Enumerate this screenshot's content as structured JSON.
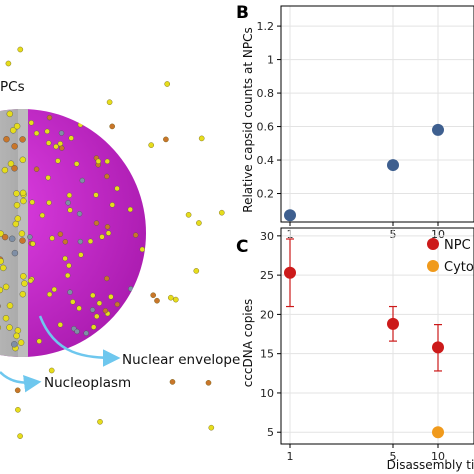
{
  "panel_a": {
    "labels": {
      "npcs": "PCs",
      "nuclear_envelope": "Nuclear envelope",
      "nucleoplasm": "Nucleoplasm"
    },
    "colors": {
      "envelope": "#cc1fd1",
      "cutaway": "#c9c9c9",
      "capsid": "#e6dd1c",
      "capsid_orange": "#c9762a",
      "npc": "#7f8fa6",
      "arrow": "#6ec7ee"
    }
  },
  "chart_data": [
    {
      "panel": "B",
      "type": "scatter",
      "title": "",
      "xlabel": "",
      "ylabel": "Relative capsid counts at NPCs",
      "xticks": [
        1,
        5,
        10
      ],
      "yticks": [
        0.2,
        0.4,
        0.6,
        0.8,
        1.0,
        1.2
      ],
      "ylim": [
        0.03,
        1.32
      ],
      "grid": true,
      "series": [
        {
          "color": "#3e5f8f",
          "points": [
            {
              "x": 1,
              "y": 0.07
            },
            {
              "x": 5,
              "y": 0.37
            },
            {
              "x": 10,
              "y": 0.58
            }
          ]
        }
      ]
    },
    {
      "panel": "C",
      "type": "scatter",
      "title": "",
      "xlabel": "Disassembly time",
      "ylabel": "cccDNA copies",
      "xticks": [
        1,
        5,
        10
      ],
      "yticks": [
        5,
        10,
        15,
        20,
        25,
        30
      ],
      "ylim": [
        3.5,
        31
      ],
      "grid": true,
      "legend_position": "top-right",
      "series": [
        {
          "name": "NPC",
          "color": "#cc1a1a",
          "points": [
            {
              "x": 1,
              "y": 25.3,
              "err_low": 21.0,
              "err_high": 29.6
            },
            {
              "x": 5,
              "y": 18.8,
              "err_low": 16.6,
              "err_high": 21.0
            },
            {
              "x": 10,
              "y": 15.8,
              "err_low": 12.8,
              "err_high": 18.7
            }
          ]
        },
        {
          "name": "Cytop",
          "color": "#f09a1c",
          "points": [
            {
              "x": 10,
              "y": 5.0
            }
          ]
        }
      ]
    }
  ]
}
